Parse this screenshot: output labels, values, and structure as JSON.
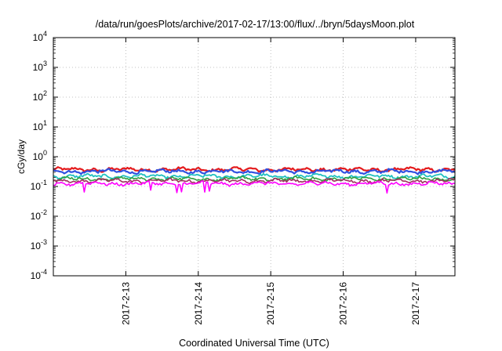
{
  "chart_data": {
    "type": "line",
    "title": "/data/run/goesPlots/archive/2017-02-17/13:00/flux/../bryn/5daysMoon.plot",
    "xlabel": "Coordinated Universal Time (UTC)",
    "ylabel": "cGy/day",
    "yscale": "log",
    "ylim": [
      0.0001,
      10000
    ],
    "y_ticks": [
      {
        "value": 0.0001,
        "base": "10",
        "exp": "-4"
      },
      {
        "value": 0.001,
        "base": "10",
        "exp": "-3"
      },
      {
        "value": 0.01,
        "base": "10",
        "exp": "-2"
      },
      {
        "value": 0.1,
        "base": "10",
        "exp": "-1"
      },
      {
        "value": 1,
        "base": "10",
        "exp": "0"
      },
      {
        "value": 10,
        "base": "10",
        "exp": "1"
      },
      {
        "value": 100,
        "base": "10",
        "exp": "2"
      },
      {
        "value": 1000,
        "base": "10",
        "exp": "3"
      },
      {
        "value": 10000,
        "base": "10",
        "exp": "4"
      }
    ],
    "xlim": [
      "2017-02-12 00:00",
      "2017-02-17 13:00"
    ],
    "x_ticks": [
      "2017-2-13",
      "2017-2-14",
      "2017-2-15",
      "2017-2-16",
      "2017-2-17"
    ],
    "x_tick_dates": [
      "2017-02-13 00:00",
      "2017-02-14 00:00",
      "2017-02-15 00:00",
      "2017-02-16 00:00",
      "2017-02-17 00:00"
    ],
    "grid": true,
    "series": [
      {
        "color": "#e41a1c",
        "base": 0.37,
        "width": 2.2,
        "dips": []
      },
      {
        "color": "#3050e0",
        "base": 0.32,
        "width": 2.2,
        "dips": []
      },
      {
        "color": "#20c0c0",
        "base": 0.22,
        "width": 1.8,
        "dips": []
      },
      {
        "color": "#30a040",
        "base": 0.18,
        "width": 1.6,
        "dips": []
      },
      {
        "color": "#a03060",
        "base": 0.155,
        "width": 1.6,
        "dips": []
      },
      {
        "color": "#ff00ff",
        "base": 0.125,
        "width": 1.6,
        "dips": [
          {
            "date": "2017-02-12 10:00",
            "value": 0.065
          },
          {
            "date": "2017-02-13 08:00",
            "value": 0.075
          },
          {
            "date": "2017-02-13 17:00",
            "value": 0.062
          },
          {
            "date": "2017-02-13 18:30",
            "value": 0.066
          },
          {
            "date": "2017-02-14 02:00",
            "value": 0.065
          },
          {
            "date": "2017-02-14 03:30",
            "value": 0.07
          },
          {
            "date": "2017-02-16 14:30",
            "value": 0.06
          }
        ]
      }
    ]
  }
}
